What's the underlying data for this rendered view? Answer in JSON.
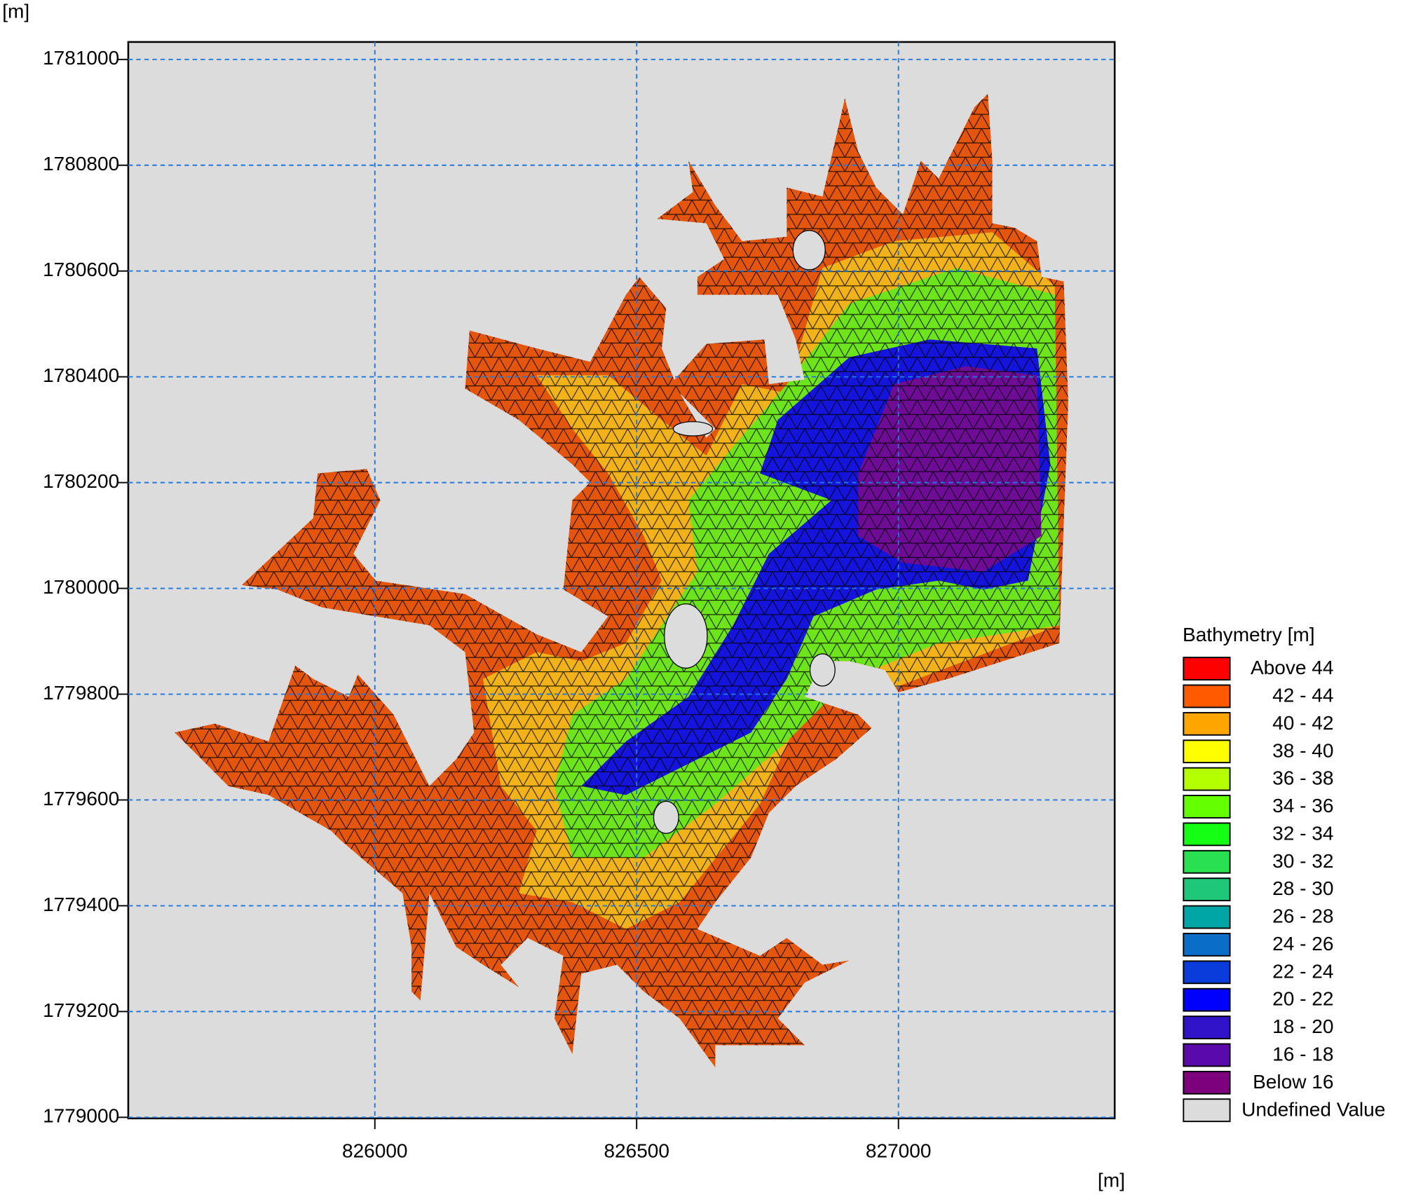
{
  "chart_data": {
    "type": "map",
    "x_label": "[m]",
    "y_label": "[m]",
    "xlim": [
      825529,
      827413
    ],
    "ylim": [
      1778998,
      1781033
    ],
    "xticks": [
      826000,
      826500,
      827000
    ],
    "yticks": [
      1779000,
      1779200,
      1779400,
      1779600,
      1779800,
      1780000,
      1780200,
      1780400,
      1780600,
      1780800,
      1781000
    ],
    "grid": true,
    "legend": {
      "title": "Bathymetry [m]",
      "items": [
        {
          "label": "Above 44",
          "color": "#ff0000"
        },
        {
          "label": "42 - 44",
          "color": "#ff5a00"
        },
        {
          "label": "40 - 42",
          "color": "#ffa500"
        },
        {
          "label": "38 - 40",
          "color": "#ffff00"
        },
        {
          "label": "36 - 38",
          "color": "#b4ff00"
        },
        {
          "label": "34 - 36",
          "color": "#64ff00"
        },
        {
          "label": "32 - 34",
          "color": "#14ff14"
        },
        {
          "label": "30 - 32",
          "color": "#28e050"
        },
        {
          "label": "28 - 30",
          "color": "#1ec878"
        },
        {
          "label": "26 - 28",
          "color": "#00a5a5"
        },
        {
          "label": "24 - 26",
          "color": "#0a6ec8"
        },
        {
          "label": "22 - 24",
          "color": "#0a3cdc"
        },
        {
          "label": "20 - 22",
          "color": "#0000ff"
        },
        {
          "label": "18 - 20",
          "color": "#3214c8"
        },
        {
          "label": "16 - 18",
          "color": "#5a0aaa"
        },
        {
          "label": "Below 16",
          "color": "#7d007d"
        },
        {
          "label": "Undefined Value",
          "color": "#dcdcdc"
        }
      ]
    }
  }
}
